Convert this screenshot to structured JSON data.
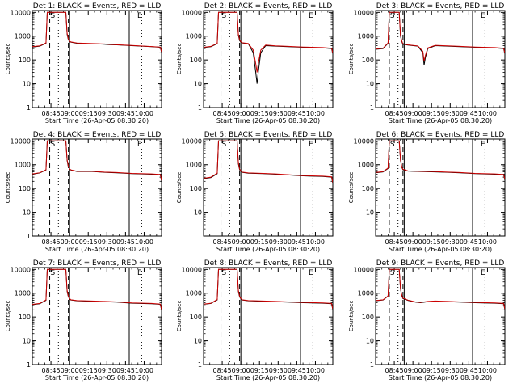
{
  "panel_titles": [
    "Det 1: BLACK = Events, RED = LLD",
    "Det 2: BLACK = Events, RED = LLD",
    "Det 3: BLACK = Events, RED = LLD",
    "Det 4: BLACK = Events, RED = LLD",
    "Det 5: BLACK = Events, RED = LLD",
    "Det 6: BLACK = Events, RED = LLD",
    "Det 7: BLACK = Events, RED = LLD",
    "Det 8: BLACK = Events, RED = LLD",
    "Det 9: BLACK = Events, RED = LLD"
  ],
  "ylabel": "Counts/sec",
  "xlabel": "Start Time (26-Apr-05 08:30:20)",
  "x_tick_labels": [
    "08:45",
    "09:00",
    "09:15",
    "09:30",
    "09:45",
    "10:00"
  ],
  "y_tick_labels": [
    "1",
    "10",
    "100",
    "1000",
    "10000"
  ],
  "marker_letters": {
    "south": "S",
    "east": "E"
  },
  "colors": {
    "events": "#000000",
    "lld": "#cc0000",
    "axes": "#000000",
    "background": "#ffffff"
  },
  "chart_data": [
    {
      "type": "line",
      "title": "Det 1: BLACK = Events, RED = LLD",
      "xlabel": "Start Time (26-Apr-05 08:30:20)",
      "ylabel": "Counts/sec",
      "yscale": "log",
      "ylim": [
        1,
        12000
      ],
      "xlim_minutes_after_start": [
        0,
        104
      ],
      "grid": false,
      "legend": "in title",
      "series": [
        {
          "name": "BLACK = Events",
          "x": [
            0,
            6,
            11,
            12,
            13,
            14,
            27,
            28,
            29,
            30,
            31,
            36,
            48,
            58,
            62,
            68,
            80,
            96,
            103,
            104
          ],
          "y": [
            350,
            380,
            500,
            10000,
            10000,
            10000,
            10000,
            1200,
            700,
            600,
            560,
            500,
            480,
            460,
            440,
            430,
            400,
            360,
            340,
            200
          ]
        },
        {
          "name": "RED = LLD",
          "x": [
            0,
            6,
            11,
            12,
            13,
            14,
            27,
            28,
            29,
            30,
            31,
            36,
            48,
            58,
            62,
            68,
            80,
            96,
            103,
            104
          ],
          "y": [
            360,
            390,
            520,
            10000,
            10000,
            10000,
            10000,
            1300,
            760,
            620,
            570,
            510,
            490,
            470,
            450,
            435,
            405,
            365,
            345,
            220
          ]
        }
      ]
    },
    {
      "type": "line",
      "title": "Det 2: BLACK = Events, RED = LLD",
      "xlabel": "Start Time (26-Apr-05 08:30:20)",
      "ylabel": "Counts/sec",
      "yscale": "log",
      "ylim": [
        1,
        12000
      ],
      "xlim_minutes_after_start": [
        0,
        104
      ],
      "grid": false,
      "legend": "in title",
      "series": [
        {
          "name": "BLACK = Events",
          "x": [
            0,
            6,
            11,
            12,
            13,
            14,
            27,
            28,
            29,
            30,
            31,
            36,
            40,
            42,
            43,
            44,
            46,
            50,
            58,
            68,
            80,
            96,
            103,
            104
          ],
          "y": [
            330,
            360,
            480,
            10000,
            10000,
            10000,
            10000,
            1100,
            650,
            560,
            520,
            480,
            200,
            30,
            10,
            30,
            200,
            400,
            380,
            360,
            340,
            320,
            300,
            180
          ]
        },
        {
          "name": "RED = LLD",
          "x": [
            0,
            6,
            11,
            12,
            13,
            14,
            27,
            28,
            29,
            30,
            31,
            36,
            40,
            42,
            43,
            44,
            46,
            50,
            58,
            68,
            80,
            96,
            103,
            104
          ],
          "y": [
            340,
            370,
            500,
            10000,
            10000,
            10000,
            10000,
            1200,
            700,
            580,
            530,
            490,
            260,
            70,
            30,
            70,
            260,
            420,
            390,
            370,
            350,
            330,
            310,
            200
          ]
        }
      ]
    },
    {
      "type": "line",
      "title": "Det 3: BLACK = Events, RED = LLD",
      "xlabel": "Start Time (26-Apr-05 08:30:20)",
      "ylabel": "Counts/sec",
      "yscale": "log",
      "ylim": [
        1,
        12000
      ],
      "xlim_minutes_after_start": [
        0,
        104
      ],
      "grid": false,
      "legend": "in title",
      "series": [
        {
          "name": "BLACK = Events",
          "x": [
            0,
            6,
            10,
            11,
            12,
            19,
            20,
            21,
            22,
            26,
            34,
            38,
            39,
            40,
            42,
            48,
            58,
            68,
            80,
            96,
            103,
            104
          ],
          "y": [
            280,
            300,
            500,
            10000,
            10000,
            10000,
            1000,
            600,
            450,
            420,
            380,
            200,
            60,
            120,
            300,
            400,
            380,
            360,
            340,
            320,
            300,
            180
          ]
        },
        {
          "name": "RED = LLD",
          "x": [
            0,
            6,
            10,
            11,
            12,
            19,
            20,
            21,
            22,
            26,
            34,
            38,
            39,
            40,
            42,
            48,
            58,
            68,
            80,
            96,
            103,
            104
          ],
          "y": [
            290,
            310,
            520,
            10000,
            10000,
            10000,
            1100,
            650,
            470,
            430,
            390,
            230,
            90,
            150,
            320,
            410,
            390,
            370,
            350,
            330,
            310,
            200
          ]
        }
      ]
    },
    {
      "type": "line",
      "title": "Det 4: BLACK = Events, RED = LLD",
      "xlabel": "Start Time (26-Apr-05 08:30:20)",
      "ylabel": "Counts/sec",
      "yscale": "log",
      "ylim": [
        1,
        12000
      ],
      "xlim_minutes_after_start": [
        0,
        104
      ],
      "grid": false,
      "legend": "in title",
      "series": [
        {
          "name": "BLACK = Events",
          "x": [
            0,
            6,
            11,
            12,
            13,
            14,
            27,
            28,
            29,
            30,
            31,
            36,
            48,
            58,
            68,
            80,
            96,
            103,
            104
          ],
          "y": [
            400,
            450,
            600,
            10000,
            10000,
            10000,
            10000,
            1500,
            800,
            650,
            600,
            520,
            520,
            480,
            460,
            420,
            400,
            380,
            200
          ]
        },
        {
          "name": "RED = LLD",
          "x": [
            0,
            6,
            11,
            12,
            13,
            14,
            27,
            28,
            29,
            30,
            31,
            36,
            48,
            58,
            68,
            80,
            96,
            103,
            104
          ],
          "y": [
            410,
            460,
            620,
            10000,
            10000,
            10000,
            10000,
            1600,
            850,
            670,
            610,
            530,
            530,
            490,
            470,
            430,
            410,
            390,
            220
          ]
        }
      ]
    },
    {
      "type": "line",
      "title": "Det 5: BLACK = Events, RED = LLD",
      "xlabel": "Start Time (26-Apr-05 08:30:20)",
      "ylabel": "Counts/sec",
      "yscale": "log",
      "ylim": [
        1,
        12000
      ],
      "xlim_minutes_after_start": [
        0,
        104
      ],
      "grid": false,
      "legend": "in title",
      "series": [
        {
          "name": "BLACK = Events",
          "x": [
            0,
            6,
            11,
            12,
            13,
            14,
            27,
            28,
            29,
            30,
            31,
            36,
            48,
            58,
            68,
            80,
            96,
            103,
            104
          ],
          "y": [
            260,
            290,
            420,
            10000,
            10000,
            10000,
            10000,
            1100,
            620,
            520,
            480,
            440,
            420,
            400,
            370,
            340,
            320,
            300,
            160
          ]
        },
        {
          "name": "RED = LLD",
          "x": [
            0,
            6,
            11,
            12,
            13,
            14,
            27,
            28,
            29,
            30,
            31,
            36,
            48,
            58,
            68,
            80,
            96,
            103,
            104
          ],
          "y": [
            270,
            300,
            440,
            10000,
            10000,
            10000,
            10000,
            1200,
            660,
            540,
            490,
            450,
            430,
            410,
            380,
            350,
            330,
            310,
            180
          ]
        }
      ]
    },
    {
      "type": "line",
      "title": "Det 6: BLACK = Events, RED = LLD",
      "xlabel": "Start Time (26-Apr-05 08:30:20)",
      "ylabel": "Counts/sec",
      "yscale": "log",
      "ylim": [
        1,
        12000
      ],
      "xlim_minutes_after_start": [
        0,
        104
      ],
      "grid": false,
      "legend": "in title",
      "series": [
        {
          "name": "BLACK = Events",
          "x": [
            0,
            6,
            10,
            11,
            12,
            19,
            20,
            21,
            22,
            26,
            36,
            48,
            58,
            68,
            80,
            96,
            103,
            104
          ],
          "y": [
            460,
            500,
            700,
            10000,
            10000,
            10000,
            1500,
            800,
            620,
            540,
            520,
            500,
            480,
            460,
            420,
            400,
            380,
            220
          ]
        },
        {
          "name": "RED = LLD",
          "x": [
            0,
            6,
            10,
            11,
            12,
            19,
            20,
            21,
            22,
            26,
            36,
            48,
            58,
            68,
            80,
            96,
            103,
            104
          ],
          "y": [
            470,
            510,
            720,
            10000,
            10000,
            10000,
            1600,
            850,
            640,
            550,
            530,
            510,
            490,
            470,
            430,
            410,
            390,
            240
          ]
        }
      ]
    },
    {
      "type": "line",
      "title": "Det 7: BLACK = Events, RED = LLD",
      "xlabel": "Start Time (26-Apr-05 08:30:20)",
      "ylabel": "Counts/sec",
      "yscale": "log",
      "ylim": [
        1,
        12000
      ],
      "xlim_minutes_after_start": [
        0,
        104
      ],
      "grid": false,
      "legend": "in title",
      "series": [
        {
          "name": "BLACK = Events",
          "x": [
            0,
            6,
            11,
            12,
            13,
            14,
            27,
            28,
            29,
            30,
            31,
            36,
            48,
            58,
            68,
            80,
            96,
            103,
            104
          ],
          "y": [
            330,
            360,
            500,
            10000,
            10000,
            10000,
            10000,
            1200,
            700,
            580,
            520,
            480,
            460,
            440,
            420,
            380,
            360,
            340,
            190
          ]
        },
        {
          "name": "RED = LLD",
          "x": [
            0,
            6,
            11,
            12,
            13,
            14,
            27,
            28,
            29,
            30,
            31,
            36,
            48,
            58,
            68,
            80,
            96,
            103,
            104
          ],
          "y": [
            340,
            370,
            520,
            10000,
            10000,
            10000,
            10000,
            1300,
            740,
            600,
            530,
            490,
            470,
            450,
            430,
            390,
            370,
            350,
            210
          ]
        }
      ]
    },
    {
      "type": "line",
      "title": "Det 8: BLACK = Events, RED = LLD",
      "xlabel": "Start Time (26-Apr-05 08:30:20)",
      "ylabel": "Counts/sec",
      "yscale": "log",
      "ylim": [
        1,
        12000
      ],
      "xlim_minutes_after_start": [
        0,
        104
      ],
      "grid": false,
      "legend": "in title",
      "series": [
        {
          "name": "BLACK = Events",
          "x": [
            0,
            6,
            11,
            12,
            13,
            14,
            27,
            28,
            29,
            30,
            31,
            36,
            48,
            58,
            68,
            80,
            96,
            103,
            104
          ],
          "y": [
            340,
            370,
            520,
            10000,
            10000,
            10000,
            10000,
            1200,
            700,
            580,
            520,
            480,
            460,
            440,
            420,
            400,
            380,
            360,
            200
          ]
        },
        {
          "name": "RED = LLD",
          "x": [
            0,
            6,
            11,
            12,
            13,
            14,
            27,
            28,
            29,
            30,
            31,
            36,
            48,
            58,
            68,
            80,
            96,
            103,
            104
          ],
          "y": [
            350,
            380,
            540,
            10000,
            10000,
            10000,
            10000,
            1300,
            740,
            600,
            530,
            490,
            470,
            450,
            430,
            410,
            390,
            370,
            220
          ]
        }
      ]
    },
    {
      "type": "line",
      "title": "Det 9: BLACK = Events, RED = LLD",
      "xlabel": "Start Time (26-Apr-05 08:30:20)",
      "ylabel": "Counts/sec",
      "yscale": "log",
      "ylim": [
        1,
        12000
      ],
      "xlim_minutes_after_start": [
        0,
        104
      ],
      "grid": false,
      "legend": "in title",
      "series": [
        {
          "name": "BLACK = Events",
          "x": [
            0,
            6,
            10,
            11,
            12,
            19,
            20,
            21,
            22,
            26,
            32,
            36,
            42,
            48,
            58,
            68,
            80,
            96,
            103,
            104
          ],
          "y": [
            480,
            520,
            750,
            10000,
            10000,
            10000,
            1500,
            800,
            600,
            500,
            420,
            400,
            440,
            460,
            440,
            420,
            400,
            380,
            360,
            200
          ]
        },
        {
          "name": "RED = LLD",
          "x": [
            0,
            6,
            10,
            11,
            12,
            19,
            20,
            21,
            22,
            26,
            32,
            36,
            42,
            48,
            58,
            68,
            80,
            96,
            103,
            104
          ],
          "y": [
            490,
            530,
            770,
            10000,
            10000,
            10000,
            1600,
            850,
            620,
            510,
            430,
            410,
            450,
            470,
            450,
            430,
            410,
            390,
            370,
            220
          ]
        }
      ]
    }
  ],
  "vertical_markers": [
    {
      "dashed": [
        14,
        29
      ],
      "solid": [
        30,
        78
      ],
      "dotted": [
        21,
        88
      ]
    },
    {
      "dashed": [
        14,
        29
      ],
      "solid": [
        30,
        78
      ],
      "dotted": [
        21,
        88
      ]
    },
    {
      "dashed": [
        11,
        22
      ],
      "solid": [
        23,
        78
      ],
      "dotted": [
        18,
        88
      ]
    },
    {
      "dashed": [
        14,
        29
      ],
      "solid": [
        30,
        78
      ],
      "dotted": [
        21,
        88
      ]
    },
    {
      "dashed": [
        14,
        29
      ],
      "solid": [
        30,
        78
      ],
      "dotted": [
        21,
        88
      ]
    },
    {
      "dashed": [
        11,
        22
      ],
      "solid": [
        23,
        78
      ],
      "dotted": [
        18,
        88
      ]
    },
    {
      "dashed": [
        14,
        29
      ],
      "solid": [
        30,
        78
      ],
      "dotted": [
        21,
        88
      ]
    },
    {
      "dashed": [
        14,
        29
      ],
      "solid": [
        30,
        78
      ],
      "dotted": [
        21,
        88
      ]
    },
    {
      "dashed": [
        11,
        22
      ],
      "solid": [
        23,
        78
      ],
      "dotted": [
        18,
        88
      ]
    }
  ]
}
